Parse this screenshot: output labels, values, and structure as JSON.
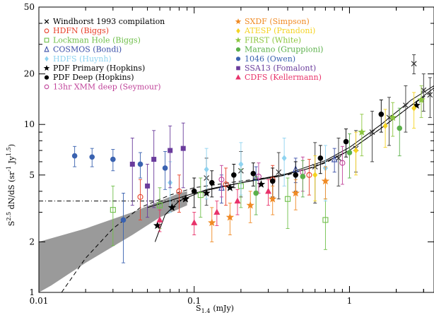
{
  "chart_data": {
    "type": "scatter",
    "title": "",
    "xlabel": "S",
    "xlabel_sub": "1.4",
    "xlabel_unit": "(mJy)",
    "ylabel": "S^2.5 dN/dS (sr^-1 Jy^1.5)",
    "ylabel_parts": {
      "s": "S",
      "sup1": "2.5",
      "mid": " dN/dS (sr",
      "sup2": "-1",
      "mid2": " Jy",
      "sup3": "1.5",
      "end": ")"
    },
    "x_scale": "log",
    "y_scale": "log",
    "xlim": [
      0.01,
      3.5
    ],
    "ylim": [
      1,
      50
    ],
    "x_ticks": [
      {
        "value": 0.01,
        "label": "0.01"
      },
      {
        "value": 0.1,
        "label": "0.1"
      },
      {
        "value": 1,
        "label": "1"
      }
    ],
    "y_ticks": [
      {
        "value": 1,
        "label": "1"
      },
      {
        "value": 2,
        "label": "2"
      },
      {
        "value": 5,
        "label": "5"
      },
      {
        "value": 10,
        "label": "10"
      },
      {
        "value": 20,
        "label": "20"
      },
      {
        "value": 50,
        "label": "50"
      }
    ],
    "legend_left": [
      {
        "label": "Windhorst 1993 compilation",
        "color": "#000000",
        "marker": "cross"
      },
      {
        "label": "HDFN (Biggs)",
        "color": "#e8402a",
        "marker": "open-circle"
      },
      {
        "label": "Lockman Hole (Biggs)",
        "color": "#6fbf4a",
        "marker": "open-square"
      },
      {
        "label": "COSMOS (Bondi)",
        "color": "#3b4fa8",
        "marker": "open-triangle"
      },
      {
        "label": "HDFS (Huynh)",
        "color": "#8fd3f0",
        "marker": "diamond"
      },
      {
        "label": "PDF Primary (Hopkins)",
        "color": "#000000",
        "marker": "star"
      },
      {
        "label": "PDF Deep (Hopkins)",
        "color": "#000000",
        "marker": "dot"
      },
      {
        "label": "13hr XMM deep (Seymour)",
        "color": "#c0439a",
        "marker": "open-circle"
      }
    ],
    "legend_right": [
      {
        "label": "SXDF (Simpson)",
        "color": "#f08a24",
        "marker": "star"
      },
      {
        "label": "ATESP (Prandoni)",
        "color": "#f5d322",
        "marker": "diamond"
      },
      {
        "label": "FIRST (White)",
        "color": "#8cc63f",
        "marker": "star"
      },
      {
        "label": "Marano (Gruppioni)",
        "color": "#5bb04a",
        "marker": "dot"
      },
      {
        "label": "1046 (Owen)",
        "color": "#3a62b0",
        "marker": "dot"
      },
      {
        "label": "SSA13 (Fomalont)",
        "color": "#6a3c9c",
        "marker": "square"
      },
      {
        "label": "CDFS (Kellermann)",
        "color": "#e8336a",
        "marker": "triangle"
      }
    ],
    "series": [
      {
        "name": "Windhorst 1993 compilation",
        "color": "#333333",
        "marker": "cross",
        "points": [
          [
            0.12,
            4.8,
            1.5
          ],
          [
            0.2,
            5.3,
            1.6
          ],
          [
            0.35,
            5.2,
            1.6
          ],
          [
            0.6,
            5.6,
            2.2
          ],
          [
            0.85,
            6.3,
            2.0
          ],
          [
            1.1,
            7.2,
            2.0
          ],
          [
            1.4,
            9.0,
            3.0
          ],
          [
            1.8,
            11.0,
            3.5
          ],
          [
            2.3,
            13.0,
            4.0
          ],
          [
            2.6,
            23.0,
            3.0
          ],
          [
            3.0,
            16.0,
            4.0
          ],
          [
            3.3,
            15.0,
            4.0
          ]
        ]
      },
      {
        "name": "HDFN (Biggs)",
        "color": "#e8402a",
        "marker": "open-circle",
        "points": [
          [
            0.045,
            3.7,
            1.0
          ],
          [
            0.08,
            4.0,
            1.0
          ],
          [
            0.16,
            4.4,
            1.1
          ],
          [
            0.32,
            4.7,
            1.0
          ],
          [
            0.55,
            5.0,
            1.2
          ]
        ]
      },
      {
        "name": "Lockman Hole (Biggs)",
        "color": "#6fbf4a",
        "marker": "open-square",
        "points": [
          [
            0.03,
            3.1,
            1.2
          ],
          [
            0.06,
            3.3,
            0.9
          ],
          [
            0.11,
            3.8,
            1.0
          ],
          [
            0.2,
            4.3,
            1.1
          ],
          [
            0.4,
            3.6,
            1.2
          ],
          [
            0.7,
            2.7,
            0.9
          ]
        ]
      },
      {
        "name": "COSMOS (Bondi)",
        "color": "#3b4fa8",
        "marker": "open-triangle",
        "points": [
          [
            0.15,
            4.2,
            0.8
          ],
          [
            0.25,
            4.8,
            0.8
          ],
          [
            0.45,
            5.4,
            0.9
          ],
          [
            0.8,
            6.2,
            1.0
          ]
        ]
      },
      {
        "name": "HDFS (Huynh)",
        "color": "#8fd3f0",
        "marker": "diamond",
        "points": [
          [
            0.07,
            4.5,
            1.5
          ],
          [
            0.12,
            5.4,
            1.8
          ],
          [
            0.2,
            5.8,
            2.0
          ],
          [
            0.38,
            6.3,
            2.0
          ],
          [
            0.7,
            5.5,
            2.0
          ]
        ]
      },
      {
        "name": "PDF Primary (Hopkins)",
        "color": "#000000",
        "marker": "star",
        "points": [
          [
            0.058,
            2.5,
            0
          ],
          [
            0.072,
            3.2,
            0
          ],
          [
            0.088,
            3.6,
            0
          ],
          [
            0.12,
            3.9,
            0
          ],
          [
            0.17,
            4.2,
            0
          ],
          [
            0.27,
            4.4,
            0
          ],
          [
            2.7,
            13.0,
            0
          ]
        ]
      },
      {
        "name": "PDF Deep (Hopkins)",
        "color": "#000000",
        "marker": "dot",
        "points": [
          [
            0.1,
            4.0,
            0.8
          ],
          [
            0.13,
            4.5,
            0.8
          ],
          [
            0.18,
            5.0,
            0.8
          ],
          [
            0.24,
            5.1,
            0.8
          ],
          [
            0.32,
            4.6,
            0.9
          ],
          [
            0.45,
            5.0,
            1.0
          ],
          [
            0.65,
            6.3,
            1.2
          ],
          [
            0.95,
            7.9,
            1.5
          ],
          [
            1.6,
            11.5,
            2.5
          ]
        ]
      },
      {
        "name": "13hr XMM deep (Seymour)",
        "color": "#c0439a",
        "marker": "open-circle",
        "points": [
          [
            0.15,
            4.7,
            1.0
          ],
          [
            0.26,
            4.9,
            1.0
          ],
          [
            0.5,
            5.2,
            1.2
          ],
          [
            0.9,
            5.9,
            1.5
          ]
        ]
      },
      {
        "name": "SXDF (Simpson)",
        "color": "#f08a24",
        "marker": "star",
        "points": [
          [
            0.13,
            2.6,
            0.6
          ],
          [
            0.17,
            2.8,
            0.6
          ],
          [
            0.23,
            3.3,
            0.7
          ],
          [
            0.32,
            3.6,
            0.7
          ],
          [
            0.45,
            3.9,
            0.8
          ],
          [
            0.7,
            4.6,
            1.0
          ]
        ]
      },
      {
        "name": "ATESP (Prandoni)",
        "color": "#f5d322",
        "marker": "diamond",
        "points": [
          [
            0.6,
            5.0,
            1.5
          ],
          [
            1.1,
            7.0,
            2.0
          ],
          [
            1.7,
            9.8,
            2.5
          ],
          [
            2.6,
            12.5,
            3.0
          ]
        ]
      },
      {
        "name": "FIRST (White)",
        "color": "#8cc63f",
        "marker": "star",
        "points": [
          [
            1.2,
            9.0,
            2.5
          ],
          [
            1.9,
            11.0,
            2.5
          ],
          [
            2.9,
            14.0,
            3.0
          ]
        ]
      },
      {
        "name": "Marano (Gruppioni)",
        "color": "#5bb04a",
        "marker": "dot",
        "points": [
          [
            0.25,
            3.9,
            1.0
          ],
          [
            0.5,
            4.9,
            1.2
          ],
          [
            1.0,
            6.8,
            2.0
          ],
          [
            2.1,
            9.5,
            3.0
          ]
        ]
      },
      {
        "name": "1046 (Owen)",
        "color": "#3a62b0",
        "marker": "dot",
        "points": [
          [
            0.017,
            6.5,
            0.9
          ],
          [
            0.022,
            6.4,
            0.8
          ],
          [
            0.03,
            6.2,
            0.9
          ],
          [
            0.045,
            5.8,
            1.0
          ],
          [
            0.065,
            5.5,
            1.4
          ],
          [
            0.035,
            2.7,
            1.2
          ]
        ]
      },
      {
        "name": "SSA13 (Fomalont)",
        "color": "#6a3c9c",
        "marker": "square",
        "points": [
          [
            0.04,
            5.8,
            2.5
          ],
          [
            0.055,
            6.2,
            3.0
          ],
          [
            0.07,
            7.0,
            2.8
          ],
          [
            0.085,
            7.2,
            3.0
          ],
          [
            0.05,
            4.3,
            1.5
          ]
        ]
      },
      {
        "name": "CDFS (Kellermann)",
        "color": "#e8336a",
        "marker": "triangle",
        "points": [
          [
            0.06,
            2.7,
            0.4
          ],
          [
            0.1,
            2.6,
            0.4
          ],
          [
            0.14,
            3.0,
            0.5
          ],
          [
            0.19,
            3.5,
            0.6
          ],
          [
            0.3,
            4.0,
            0.7
          ]
        ]
      }
    ],
    "shaded_band": {
      "upper": [
        [
          0.01,
          2.0
        ],
        [
          0.02,
          2.4
        ],
        [
          0.04,
          3.0
        ],
        [
          0.06,
          3.5
        ],
        [
          0.08,
          3.9
        ],
        [
          0.09,
          4.0
        ]
      ],
      "lower": [
        [
          0.09,
          3.3
        ],
        [
          0.06,
          2.8
        ],
        [
          0.04,
          2.2
        ],
        [
          0.02,
          1.5
        ],
        [
          0.012,
          1.1
        ],
        [
          0.01,
          1.0
        ]
      ],
      "color": "#9a9a9a"
    },
    "reference_line": {
      "y": 3.5,
      "x_range": [
        0.01,
        0.09
      ],
      "style": "dash-dot"
    },
    "model_curves": [
      {
        "style": "solid",
        "points": [
          [
            0.056,
            2.0
          ],
          [
            0.065,
            2.9
          ],
          [
            0.08,
            3.5
          ],
          [
            0.12,
            4.1
          ],
          [
            0.2,
            4.5
          ],
          [
            0.35,
            4.9
          ],
          [
            0.6,
            5.6
          ],
          [
            1.0,
            7.0
          ],
          [
            1.6,
            9.5
          ],
          [
            2.5,
            13.0
          ],
          [
            3.5,
            16.5
          ]
        ]
      },
      {
        "style": "solid",
        "points": [
          [
            0.05,
            3.2
          ],
          [
            0.1,
            3.9
          ],
          [
            0.2,
            4.5
          ],
          [
            0.4,
            5.1
          ],
          [
            0.7,
            6.1
          ],
          [
            1.0,
            7.3
          ],
          [
            1.6,
            10.0
          ],
          [
            2.5,
            14.0
          ],
          [
            3.5,
            17.0
          ]
        ]
      },
      {
        "style": "dashed",
        "points": [
          [
            0.014,
            1.0
          ],
          [
            0.02,
            1.6
          ],
          [
            0.03,
            2.4
          ],
          [
            0.045,
            3.2
          ],
          [
            0.07,
            3.8
          ],
          [
            0.1,
            4.2
          ],
          [
            0.2,
            4.6
          ],
          [
            0.4,
            5.0
          ],
          [
            0.7,
            5.9
          ],
          [
            1.0,
            7.0
          ],
          [
            1.6,
            9.5
          ],
          [
            2.5,
            13.0
          ],
          [
            3.5,
            16.0
          ]
        ]
      }
    ]
  }
}
